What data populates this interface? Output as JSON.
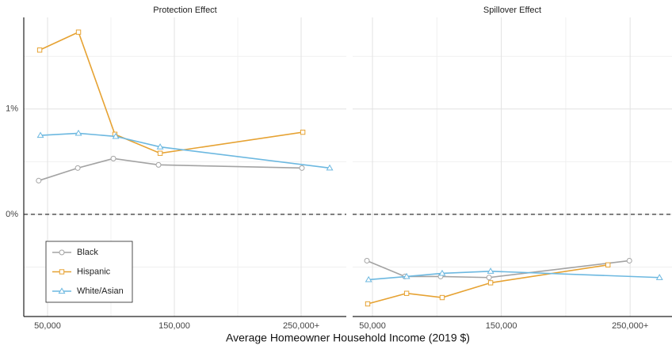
{
  "xlabel": "Average Homeowner Household Income (2019 $)",
  "chart_data": [
    {
      "type": "line",
      "title": "Protection Effect",
      "xlim": [
        31250,
        285600
      ],
      "ylim": [
        -0.97,
        1.87
      ],
      "xticks": [
        {
          "value": 50000,
          "label": "50,000"
        },
        {
          "value": 150000,
          "label": "150,000"
        },
        {
          "value": 250000,
          "label": "250,000+"
        }
      ],
      "yticks": [
        {
          "value": 0,
          "label": "0%"
        },
        {
          "value": 1,
          "label": "1%"
        }
      ],
      "minor_xgrid": [
        100000,
        200000
      ],
      "minor_ygrid": [
        -0.5,
        0.5,
        1.5
      ],
      "grid": true,
      "hline": 0,
      "legend": "bottom left",
      "series": [
        {
          "name": "Black",
          "color": "#a3a3a3",
          "marker": "circle",
          "x": [
            43000,
            73800,
            101900,
            137500,
            250600
          ],
          "values": [
            0.32,
            0.44,
            0.53,
            0.47,
            0.44
          ]
        },
        {
          "name": "Hispanic",
          "color": "#e6a232",
          "marker": "square",
          "x": [
            43800,
            74400,
            103100,
            138800,
            251300
          ],
          "values": [
            1.56,
            1.73,
            0.76,
            0.58,
            0.78
          ]
        },
        {
          "name": "White/Asian",
          "color": "#6cb8e0",
          "marker": "triangle",
          "x": [
            44400,
            74400,
            103800,
            138800,
            272500
          ],
          "values": [
            0.75,
            0.77,
            0.74,
            0.64,
            0.44
          ]
        }
      ]
    },
    {
      "type": "line",
      "title": "Spillover Effect",
      "xlim": [
        34600,
        282500
      ],
      "ylim": [
        -0.97,
        1.87
      ],
      "xticks": [
        {
          "value": 50000,
          "label": "50,000"
        },
        {
          "value": 150000,
          "label": "150,000"
        },
        {
          "value": 250000,
          "label": "250,000+"
        }
      ],
      "minor_xgrid": [
        100000,
        200000
      ],
      "minor_ygrid": [
        -0.5,
        0.5,
        1.5
      ],
      "major_ygrid": [
        0,
        1
      ],
      "grid": true,
      "hline": 0,
      "legend": "none",
      "series": [
        {
          "name": "Black",
          "color": "#a3a3a3",
          "marker": "circle",
          "x": [
            45700,
            75200,
            102900,
            140500,
            249400
          ],
          "values": [
            -0.44,
            -0.59,
            -0.59,
            -0.6,
            -0.44
          ]
        },
        {
          "name": "Hispanic",
          "color": "#e6a232",
          "marker": "square",
          "x": [
            46300,
            76500,
            104100,
            141700,
            232800
          ],
          "values": [
            -0.85,
            -0.75,
            -0.79,
            -0.65,
            -0.48
          ]
        },
        {
          "name": "White/Asian",
          "color": "#6cb8e0",
          "marker": "triangle",
          "x": [
            47000,
            76500,
            104100,
            141700,
            272800
          ],
          "values": [
            -0.62,
            -0.59,
            -0.56,
            -0.54,
            -0.6
          ]
        }
      ]
    }
  ]
}
